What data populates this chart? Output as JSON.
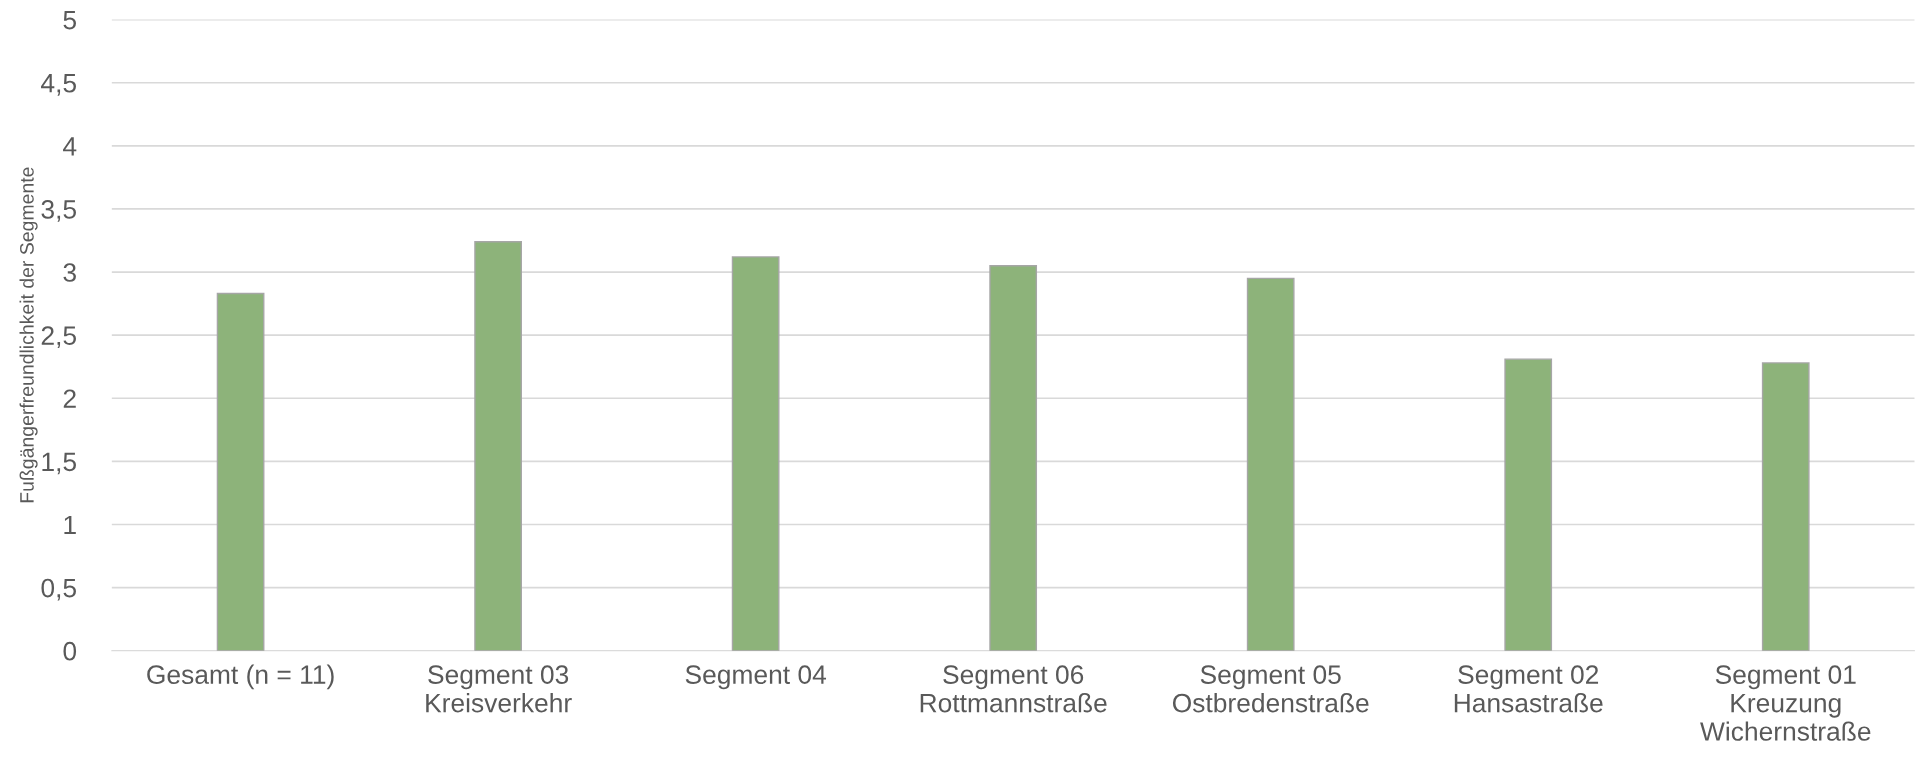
{
  "chart_data": {
    "type": "bar",
    "ylabel": "Fußgängerfreundlichkeit der Segmente",
    "categories": [
      "Gesamt (n = 11)",
      "Segment 03\nKreisverkehr",
      "Segment 04",
      "Segment 06\nRottmannstraße",
      "Segment 05\nOstbredenstraße",
      "Segment 02\nHansastraße",
      "Segment 01\nKreuzung\nWichernstraße"
    ],
    "values": [
      2.83,
      3.24,
      3.12,
      3.05,
      2.95,
      2.31,
      2.28
    ],
    "color": "#8db37a",
    "ylim": [
      0,
      5
    ],
    "yticks": [
      0,
      {
        "value": 0.5,
        "label": "0,5"
      },
      1,
      {
        "value": 1.5,
        "label": "1,5"
      },
      2,
      {
        "value": 2.5,
        "label": "2,5"
      },
      3,
      {
        "value": 3.5,
        "label": "3,5"
      },
      4,
      {
        "value": 4.5,
        "label": "4,5"
      },
      5
    ],
    "grid": "y"
  }
}
